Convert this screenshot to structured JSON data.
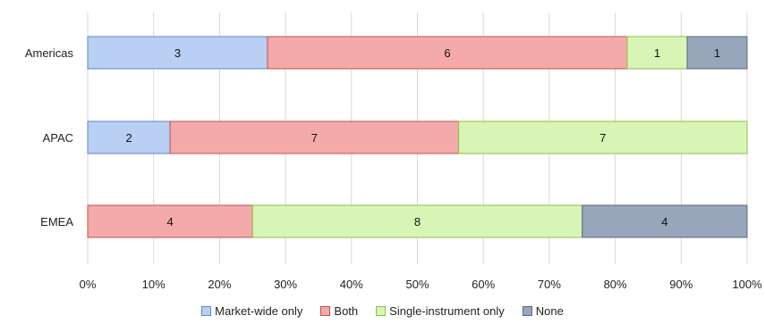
{
  "chart_data": {
    "type": "bar",
    "orientation": "horizontal",
    "stacking": "percent",
    "categories": [
      "Americas",
      "APAC",
      "EMEA"
    ],
    "series": [
      {
        "name": "Market-wide only",
        "values": [
          3,
          2,
          0
        ],
        "color": "#b9cff3",
        "edge": "#5f86c9"
      },
      {
        "name": "Both",
        "values": [
          6,
          7,
          4
        ],
        "color": "#f4aaaa",
        "edge": "#c0504d"
      },
      {
        "name": "Single-instrument only",
        "values": [
          1,
          7,
          8
        ],
        "color": "#d9f5b5",
        "edge": "#8cbf4a"
      },
      {
        "name": "None",
        "values": [
          1,
          0,
          4
        ],
        "color": "#98a6bb",
        "edge": "#59677f"
      }
    ],
    "xlim": [
      0,
      100
    ],
    "x_ticks": [
      "0%",
      "10%",
      "20%",
      "30%",
      "40%",
      "50%",
      "60%",
      "70%",
      "80%",
      "90%",
      "100%"
    ],
    "grid": true,
    "legend_position": "bottom",
    "title": "",
    "xlabel": "",
    "ylabel": ""
  }
}
